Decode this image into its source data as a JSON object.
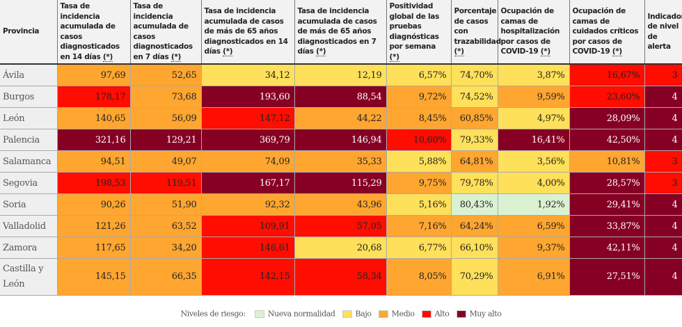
{
  "headers": [
    {
      "text": "Provincia",
      "ast": ""
    },
    {
      "text": "Tasa de incidencia acumulada de casos diagnosticados en 14 días ",
      "ast": "(*)"
    },
    {
      "text": "Tasa de incidencia acumulada de casos diagnosticados en 7 días ",
      "ast": "(*)"
    },
    {
      "text": "Tasa de incidencia acumulada de casos de más de 65 años diagnosticados en 14 días ",
      "ast": "(*)"
    },
    {
      "text": "Tasa de incidencia acumulada de casos de más de 65 años diagnosticados en 7 días ",
      "ast": "(*)"
    },
    {
      "text": "Positividad global de las pruebas diagnósticas por semana ",
      "ast": "(*)"
    },
    {
      "text": "Porcentaje de casos con trazabilidad ",
      "ast": "(*)"
    },
    {
      "text": "Ocupación de camas de hospitalización por casos de COVID-19 ",
      "ast": "(*)"
    },
    {
      "text": "Ocupación de camas de cuidados críticos por casos de COVID-19 ",
      "ast": "(*)"
    },
    {
      "text": "Indicador de nivel de alerta",
      "ast": ""
    }
  ],
  "level_colors": {
    "n": "#dbf2d2",
    "b": "#ffe05a",
    "m": "#ffa630",
    "a": "#ff0d00",
    "x": "#860024"
  },
  "rows": [
    {
      "province": "Ávila",
      "values": [
        "97,69",
        "52,65",
        "34,12",
        "12,19",
        "6,57%",
        "74,70%",
        "3,87%",
        "16,67%",
        "3"
      ],
      "levels": [
        "m",
        "m",
        "b",
        "b",
        "b",
        "b",
        "b",
        "a",
        "a"
      ]
    },
    {
      "province": "Burgos",
      "values": [
        "178,17",
        "73,68",
        "193,60",
        "88,54",
        "9,72%",
        "74,52%",
        "9,59%",
        "23,60%",
        "4"
      ],
      "levels": [
        "a",
        "m",
        "x",
        "x",
        "m",
        "b",
        "m",
        "a",
        "x"
      ]
    },
    {
      "province": "León",
      "values": [
        "140,65",
        "56,09",
        "147,12",
        "44,22",
        "8,45%",
        "60,85%",
        "4,97%",
        "28,09%",
        "4"
      ],
      "levels": [
        "m",
        "m",
        "a",
        "m",
        "m",
        "m",
        "b",
        "x",
        "x"
      ]
    },
    {
      "province": "Palencia",
      "values": [
        "321,16",
        "129,21",
        "369,79",
        "146,94",
        "10,60%",
        "79,33%",
        "16,41%",
        "42,50%",
        "4"
      ],
      "levels": [
        "x",
        "x",
        "x",
        "x",
        "a",
        "b",
        "x",
        "x",
        "x"
      ]
    },
    {
      "province": "Salamanca",
      "values": [
        "94,51",
        "49,07",
        "74,09",
        "35,33",
        "5,88%",
        "64,81%",
        "3,56%",
        "10,81%",
        "3"
      ],
      "levels": [
        "m",
        "m",
        "m",
        "m",
        "b",
        "m",
        "b",
        "m",
        "a"
      ]
    },
    {
      "province": "Segovia",
      "values": [
        "198,53",
        "119,51",
        "167,17",
        "115,29",
        "9,75%",
        "79,78%",
        "4,00%",
        "28,57%",
        "3"
      ],
      "levels": [
        "a",
        "a",
        "x",
        "x",
        "m",
        "b",
        "b",
        "x",
        "a"
      ]
    },
    {
      "province": "Soria",
      "values": [
        "90,26",
        "51,90",
        "92,32",
        "43,96",
        "5,16%",
        "80,43%",
        "1,92%",
        "29,41%",
        "4"
      ],
      "levels": [
        "m",
        "m",
        "m",
        "m",
        "b",
        "n",
        "n",
        "x",
        "x"
      ]
    },
    {
      "province": "Valladolid",
      "values": [
        "121,26",
        "63,52",
        "109,91",
        "57,05",
        "7,16%",
        "64,24%",
        "6,59%",
        "33,87%",
        "4"
      ],
      "levels": [
        "m",
        "m",
        "a",
        "a",
        "m",
        "m",
        "m",
        "x",
        "x"
      ]
    },
    {
      "province": "Zamora",
      "values": [
        "117,65",
        "34,20",
        "146,61",
        "20,68",
        "6,77%",
        "66,10%",
        "9,37%",
        "42,11%",
        "4"
      ],
      "levels": [
        "m",
        "m",
        "a",
        "b",
        "b",
        "b",
        "m",
        "x",
        "x"
      ]
    },
    {
      "province": "Castilla y León",
      "values": [
        "145,15",
        "66,35",
        "142,15",
        "58,34",
        "8,05%",
        "70,29%",
        "6,91%",
        "27,51%",
        "4"
      ],
      "levels": [
        "m",
        "m",
        "a",
        "a",
        "m",
        "b",
        "m",
        "x",
        "x"
      ]
    }
  ],
  "legend": {
    "title": "Niveles de riesgo:",
    "items": [
      {
        "label": "Nueva normalidad",
        "level": "n"
      },
      {
        "label": "Bajo",
        "level": "b"
      },
      {
        "label": "Medio",
        "level": "m"
      },
      {
        "label": "Alto",
        "level": "a"
      },
      {
        "label": "Muy alto",
        "level": "x"
      }
    ]
  }
}
